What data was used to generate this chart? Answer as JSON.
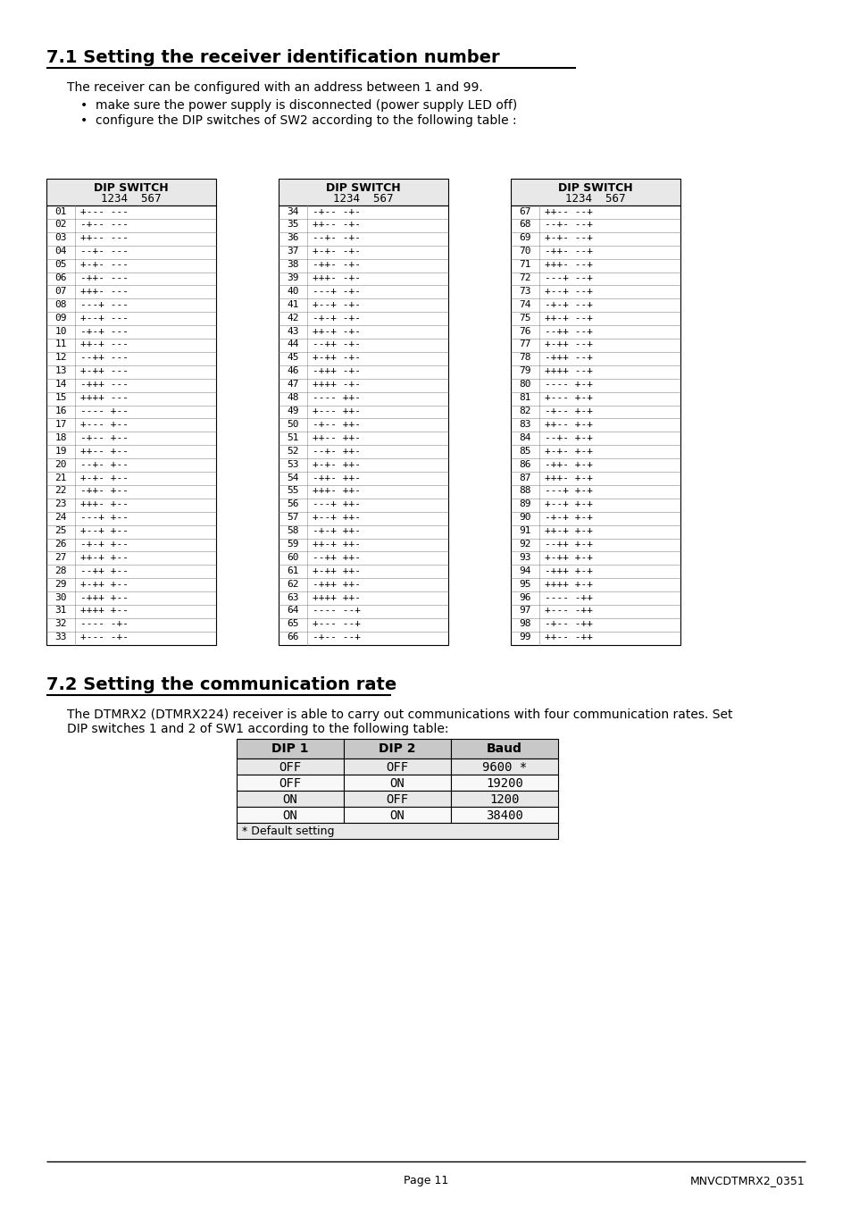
{
  "title1": "7.1 Setting the receiver identification number",
  "para1": "The receiver can be configured with an address between 1 and 99.",
  "bullet1": "make sure the power supply is disconnected (power supply LED off)",
  "bullet2": "configure the DIP switches of SW2 according to the following table :",
  "title2": "7.2 Setting the communication rate",
  "para2_line1": "The DTMRX2 (DTMRX224) receiver is able to carry out communications with four communication rates. Set",
  "para2_line2": "DIP switches 1 and 2 of SW1 according to the following table:",
  "table_data": [
    [
      "01",
      "+---",
      "---",
      "34",
      "-+--",
      "-+-",
      "67",
      "++--",
      "--+"
    ],
    [
      "02",
      "-+--",
      "---",
      "35",
      "++--",
      "-+-",
      "68",
      "--+-",
      "--+"
    ],
    [
      "03",
      "++--",
      "---",
      "36",
      "--+-",
      "-+-",
      "69",
      "+-+-",
      "--+"
    ],
    [
      "04",
      "--+-",
      "---",
      "37",
      "+-+-",
      "-+-",
      "70",
      "-++-",
      "--+"
    ],
    [
      "05",
      "+-+-",
      "---",
      "38",
      "-++-",
      "-+-",
      "71",
      "+++-",
      "--+"
    ],
    [
      "06",
      "-++-",
      "---",
      "39",
      "+++-",
      "-+-",
      "72",
      "---+",
      "--+"
    ],
    [
      "07",
      "+++-",
      "---",
      "40",
      "---+",
      "-+-",
      "73",
      "+--+",
      "--+"
    ],
    [
      "08",
      "---+",
      "---",
      "41",
      "+--+",
      "-+-",
      "74",
      "-+-+",
      "--+"
    ],
    [
      "09",
      "+--+",
      "---",
      "42",
      "-+-+",
      "-+-",
      "75",
      "++-+",
      "--+"
    ],
    [
      "10",
      "-+-+",
      "---",
      "43",
      "++-+",
      "-+-",
      "76",
      "--++",
      "--+"
    ],
    [
      "11",
      "++-+",
      "---",
      "44",
      "--++",
      "-+-",
      "77",
      "+-++",
      "--+"
    ],
    [
      "12",
      "--++",
      "---",
      "45",
      "+-++",
      "-+-",
      "78",
      "-+++",
      "--+"
    ],
    [
      "13",
      "+-++",
      "---",
      "46",
      "-+++",
      "-+-",
      "79",
      "++++",
      "--+"
    ],
    [
      "14",
      "-+++",
      "---",
      "47",
      "++++",
      "-+-",
      "80",
      "----",
      "+-+"
    ],
    [
      "15",
      "++++",
      "---",
      "48",
      "----",
      "++-",
      "81",
      "+---",
      "+-+"
    ],
    [
      "16",
      "----",
      "+--",
      "49",
      "+---",
      "++-",
      "82",
      "-+--",
      "+-+"
    ],
    [
      "17",
      "+---",
      "+--",
      "50",
      "-+--",
      "++-",
      "83",
      "++--",
      "+-+"
    ],
    [
      "18",
      "-+--",
      "+--",
      "51",
      "++--",
      "++-",
      "84",
      "--+-",
      "+-+"
    ],
    [
      "19",
      "++--",
      "+--",
      "52",
      "--+-",
      "++-",
      "85",
      "+-+-",
      "+-+"
    ],
    [
      "20",
      "--+-",
      "+--",
      "53",
      "+-+-",
      "++-",
      "86",
      "-++-",
      "+-+"
    ],
    [
      "21",
      "+-+-",
      "+--",
      "54",
      "-++-",
      "++-",
      "87",
      "+++-",
      "+-+"
    ],
    [
      "22",
      "-++-",
      "+--",
      "55",
      "+++-",
      "++-",
      "88",
      "---+",
      "+-+"
    ],
    [
      "23",
      "+++-",
      "+--",
      "56",
      "---+",
      "++-",
      "89",
      "+--+",
      "+-+"
    ],
    [
      "24",
      "---+",
      "+--",
      "57",
      "+--+",
      "++-",
      "90",
      "-+-+",
      "+-+"
    ],
    [
      "25",
      "+--+",
      "+--",
      "58",
      "-+-+",
      "++-",
      "91",
      "++-+",
      "+-+"
    ],
    [
      "26",
      "-+-+",
      "+--",
      "59",
      "++-+",
      "++-",
      "92",
      "--++",
      "+-+"
    ],
    [
      "27",
      "++-+",
      "+--",
      "60",
      "--++",
      "++-",
      "93",
      "+-++",
      "+-+"
    ],
    [
      "28",
      "--++",
      "+--",
      "61",
      "+-++",
      "++-",
      "94",
      "-+++",
      "+-+"
    ],
    [
      "29",
      "+-++",
      "+--",
      "62",
      "-+++",
      "++-",
      "95",
      "++++",
      "+-+"
    ],
    [
      "30",
      "-+++",
      "+--",
      "63",
      "++++",
      "++-",
      "96",
      "----",
      "-++"
    ],
    [
      "31",
      "++++",
      "+--",
      "64",
      "----",
      "--+",
      "97",
      "+---",
      "-++"
    ],
    [
      "32",
      "----",
      "-+-",
      "65",
      "+---",
      "--+",
      "98",
      "-+--",
      "-++"
    ],
    [
      "33",
      "+---",
      "-+-",
      "66",
      "-+--",
      "--+",
      "99",
      "++--",
      "-++"
    ]
  ],
  "baud_headers": [
    "DIP 1",
    "DIP 2",
    "Baud"
  ],
  "baud_data": [
    [
      "OFF",
      "OFF",
      "9600 *"
    ],
    [
      "OFF",
      "ON",
      "19200"
    ],
    [
      "ON",
      "OFF",
      "1200"
    ],
    [
      "ON",
      "ON",
      "38400"
    ]
  ],
  "baud_footer": "* Default setting",
  "page_text": "Page 11",
  "doc_ref": "MNVCDTMRX2_0351"
}
